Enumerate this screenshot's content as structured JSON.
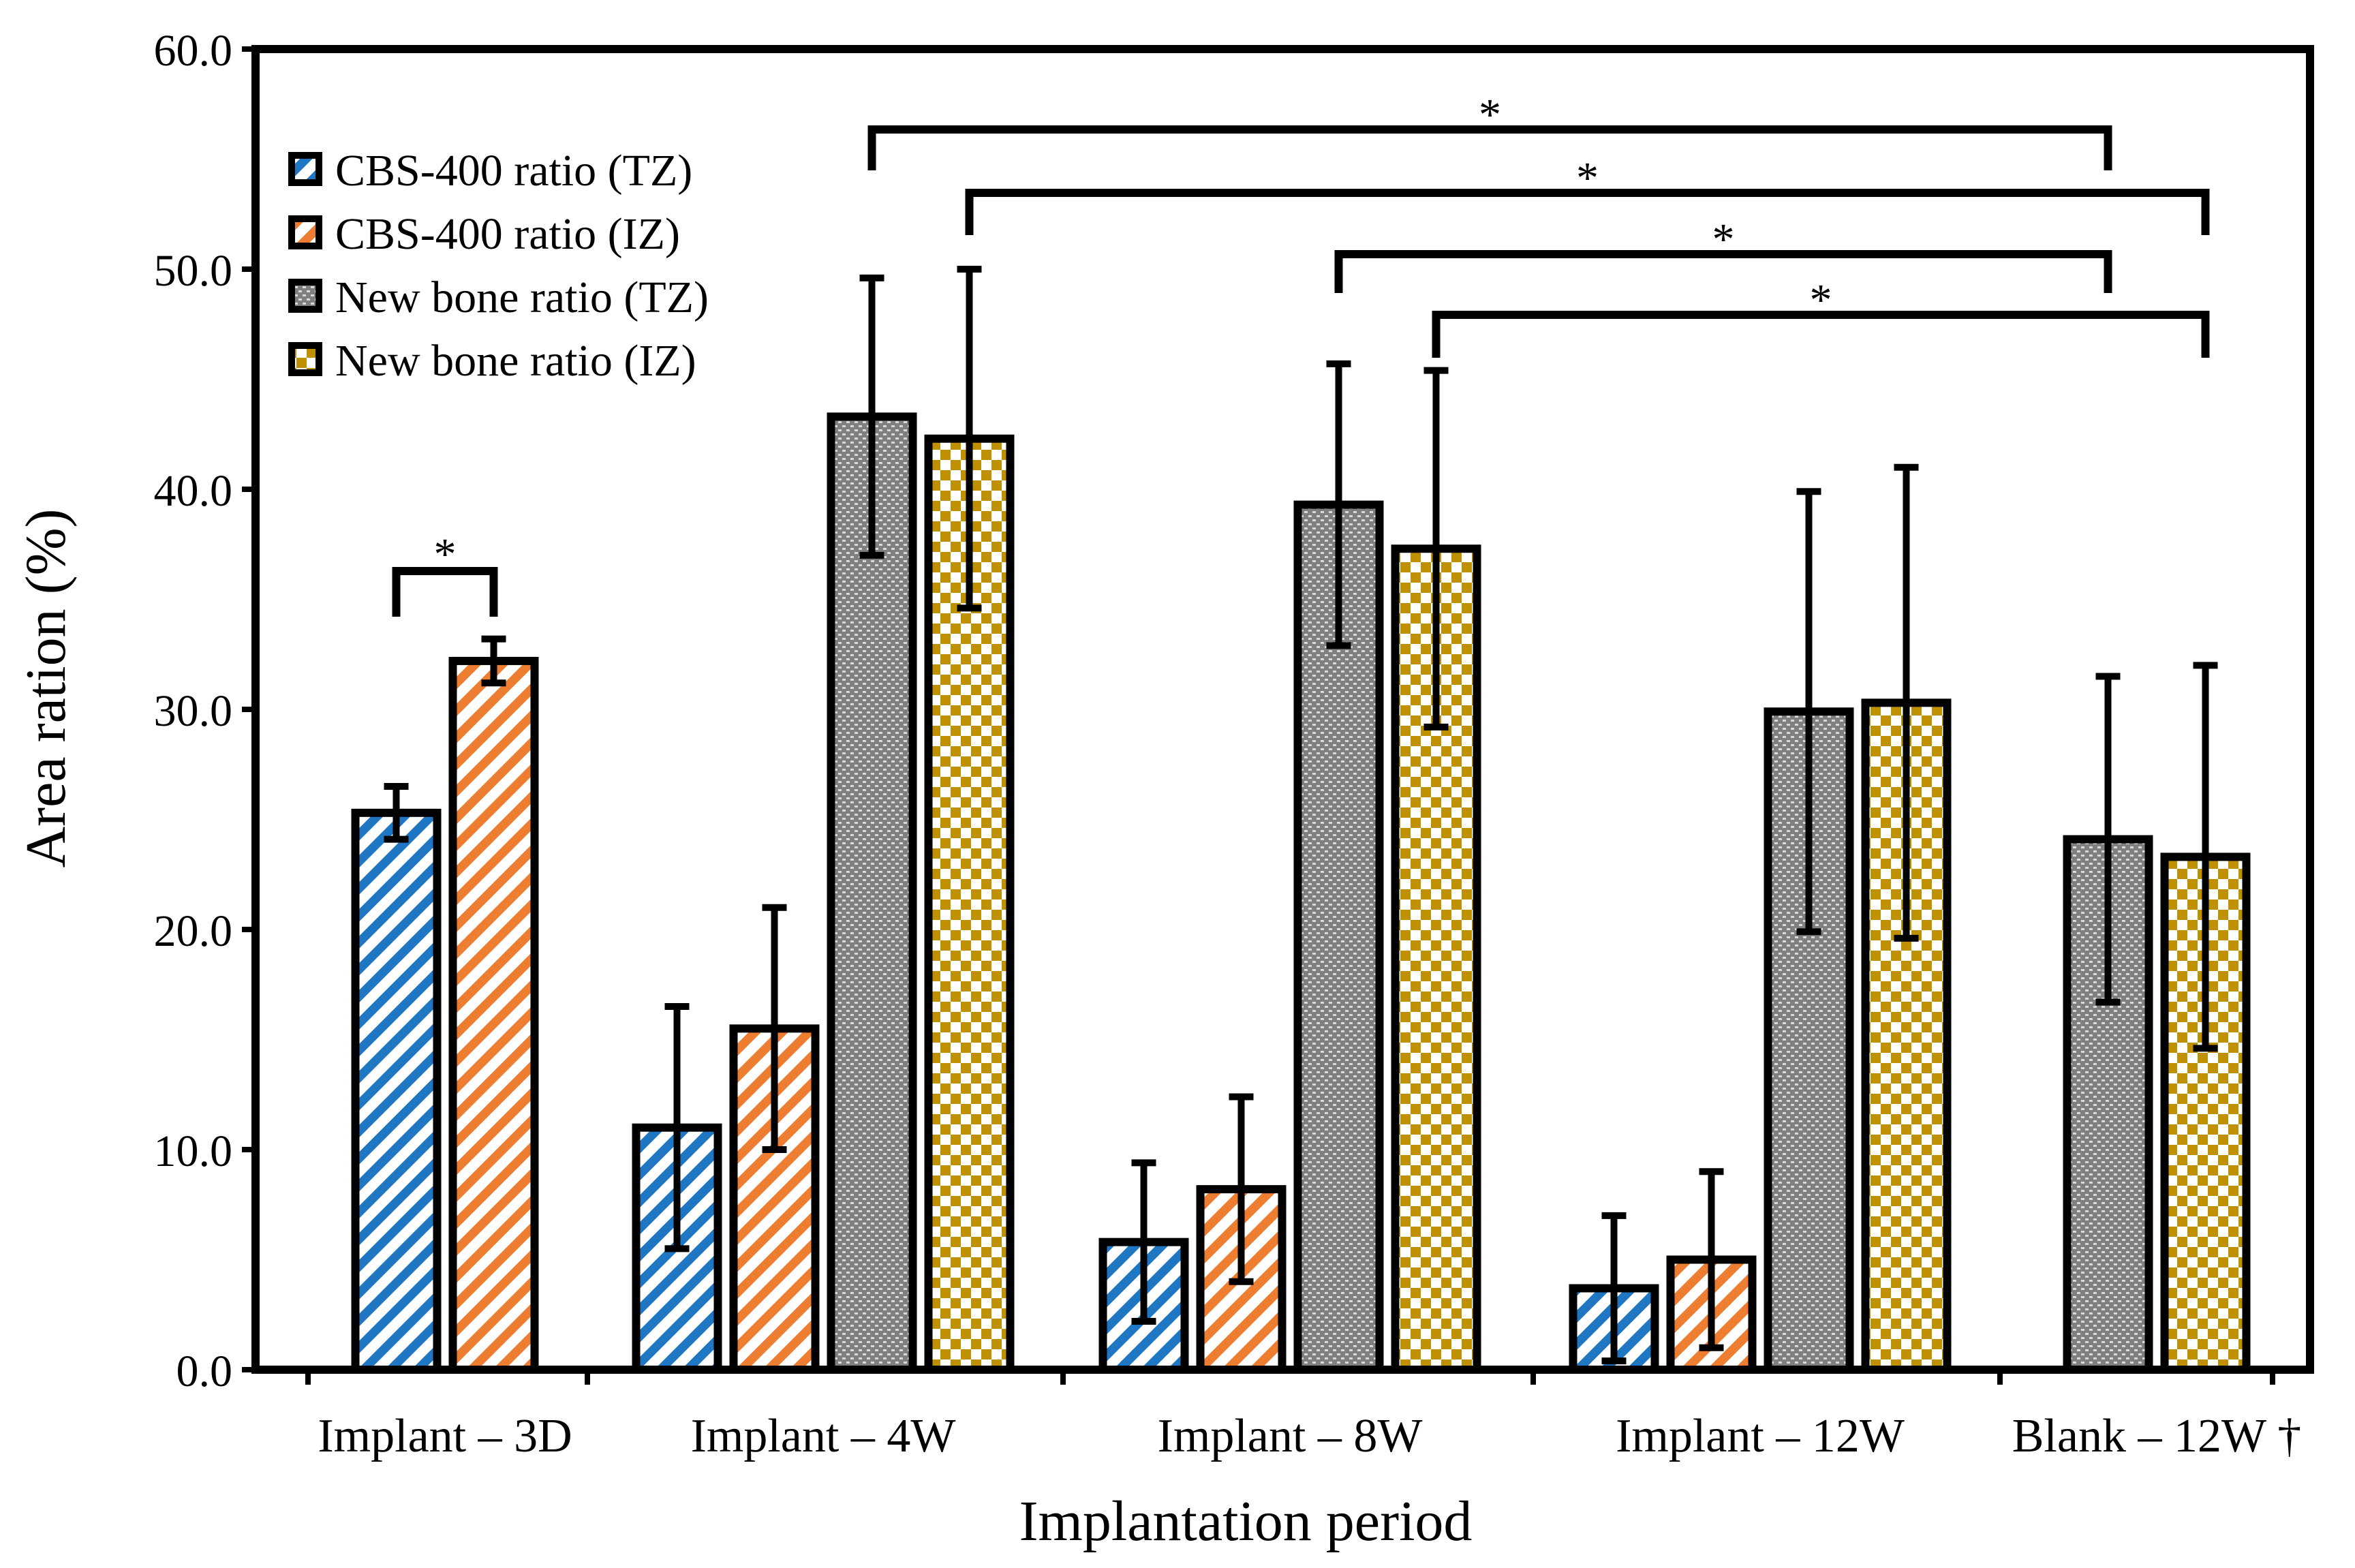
{
  "chart_data": {
    "type": "bar",
    "xlabel": "Implantation period",
    "ylabel": "Area ration (%)",
    "ylim": [
      0,
      60
    ],
    "yticks": [
      "0.0",
      "10.0",
      "20.0",
      "30.0",
      "40.0",
      "50.0",
      "60.0"
    ],
    "grid": false,
    "legend_placement": "top-left",
    "categories": [
      "Implant – 3D",
      "Implant – 4W",
      "Implant – 8W",
      "Implant – 12W",
      "Blank – 12W †"
    ],
    "series": [
      {
        "name": "CBS-400 ratio (TZ)",
        "pattern": "diagonal-stripes",
        "color": "#1f77c4",
        "values": [
          25.3,
          11.0,
          5.8,
          3.7,
          null
        ],
        "errors": [
          1.2,
          5.5,
          3.6,
          3.3,
          null
        ]
      },
      {
        "name": "CBS-400 ratio (IZ)",
        "pattern": "diagonal-stripes",
        "color": "#ed7d31",
        "values": [
          32.2,
          15.5,
          8.2,
          5.0,
          null
        ],
        "errors": [
          1.0,
          5.5,
          4.2,
          4.0,
          null
        ]
      },
      {
        "name": "New bone ratio (TZ)",
        "pattern": "fine-grid",
        "color": "#7f7f7f",
        "values": [
          null,
          43.3,
          39.3,
          29.9,
          24.1
        ],
        "errors": [
          null,
          6.3,
          6.4,
          10.0,
          7.4
        ]
      },
      {
        "name": "New bone ratio (IZ)",
        "pattern": "checkerboard",
        "color": "#bf9000",
        "values": [
          null,
          42.3,
          37.3,
          30.3,
          23.3
        ],
        "errors": [
          null,
          7.7,
          8.1,
          10.7,
          8.7
        ]
      }
    ],
    "significance": [
      {
        "label": "*",
        "from": {
          "category": 0,
          "series": 0
        },
        "to": {
          "category": 0,
          "series": 1
        }
      },
      {
        "label": "*",
        "from": {
          "category": 1,
          "series": 2
        },
        "to": {
          "category": 4,
          "series": 2
        }
      },
      {
        "label": "*",
        "from": {
          "category": 1,
          "series": 3
        },
        "to": {
          "category": 4,
          "series": 3
        }
      },
      {
        "label": "*",
        "from": {
          "category": 2,
          "series": 2
        },
        "to": {
          "category": 4,
          "series": 2
        }
      },
      {
        "label": "*",
        "from": {
          "category": 2,
          "series": 3
        },
        "to": {
          "category": 4,
          "series": 3
        }
      }
    ]
  }
}
